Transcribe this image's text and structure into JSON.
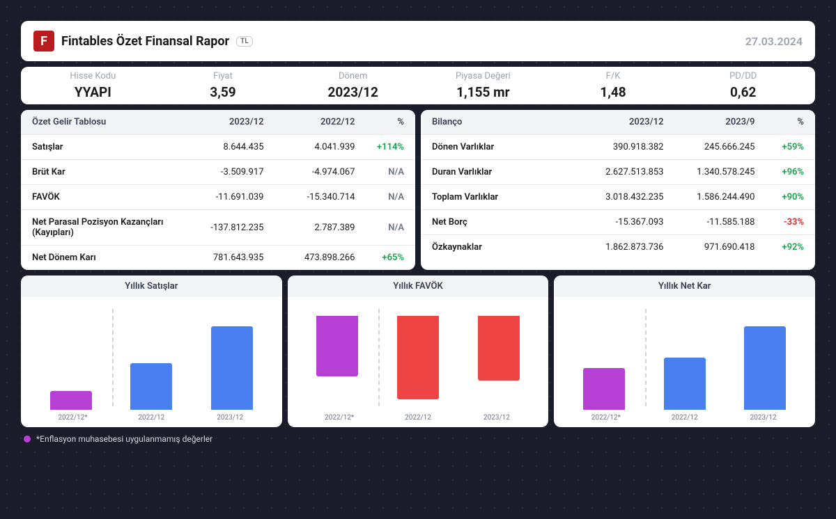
{
  "header": {
    "logo_letter": "F",
    "logo_bg": "#b91c1c",
    "title": "Fintables Özet Finansal Rapor",
    "badge": "TL",
    "date": "27.03.2024"
  },
  "metrics": [
    {
      "label": "Hisse Kodu",
      "value": "YYAPI"
    },
    {
      "label": "Fiyat",
      "value": "3,59"
    },
    {
      "label": "Dönem",
      "value": "2023/12"
    },
    {
      "label": "Piyasa Değeri",
      "value": "1,155 mr"
    },
    {
      "label": "F/K",
      "value": "1,48"
    },
    {
      "label": "PD/DD",
      "value": "0,62"
    }
  ],
  "income_table": {
    "title": "Özet Gelir Tablosu",
    "col1": "2023/12",
    "col2": "2022/12",
    "col3": "%",
    "rows": [
      {
        "label": "Satışlar",
        "v1": "8.644.435",
        "v2": "4.041.939",
        "pct": "+114%",
        "cls": "positive"
      },
      {
        "label": "Brüt Kar",
        "v1": "-3.509.917",
        "v2": "-4.974.067",
        "pct": "N/A",
        "cls": "na"
      },
      {
        "label": "FAVÖK",
        "v1": "-11.691.039",
        "v2": "-15.340.714",
        "pct": "N/A",
        "cls": "na"
      },
      {
        "label": "Net Parasal Pozisyon Kazançları (Kayıpları)",
        "v1": "-137.812.235",
        "v2": "2.787.389",
        "pct": "N/A",
        "cls": "na"
      },
      {
        "label": "Net Dönem Karı",
        "v1": "781.643.935",
        "v2": "473.898.266",
        "pct": "+65%",
        "cls": "positive"
      }
    ]
  },
  "balance_table": {
    "title": "Bilanço",
    "col1": "2023/12",
    "col2": "2023/9",
    "col3": "%",
    "rows": [
      {
        "label": "Dönen Varlıklar",
        "v1": "390.918.382",
        "v2": "245.666.245",
        "pct": "+59%",
        "cls": "positive"
      },
      {
        "label": "Duran Varlıklar",
        "v1": "2.627.513.853",
        "v2": "1.340.578.245",
        "pct": "+96%",
        "cls": "positive"
      },
      {
        "label": "Toplam Varlıklar",
        "v1": "3.018.432.235",
        "v2": "1.586.244.490",
        "pct": "+90%",
        "cls": "positive"
      },
      {
        "label": "Net Borç",
        "v1": "-15.367.093",
        "v2": "-11.585.188",
        "pct": "-33%",
        "cls": "negative"
      },
      {
        "label": "Özkaynaklar",
        "v1": "1.862.873.736",
        "v2": "971.690.418",
        "pct": "+92%",
        "cls": "positive"
      }
    ]
  },
  "charts": [
    {
      "title": "Yıllık Satışlar",
      "labels": [
        "2022/12*",
        "2022/12",
        "2023/12"
      ],
      "baseline_pct": 80,
      "bars": [
        {
          "height_pct": 18,
          "direction": "up",
          "color": "#b83fd6"
        },
        {
          "height_pct": 45,
          "direction": "up",
          "color": "#4a7ff0"
        },
        {
          "height_pct": 80,
          "direction": "up",
          "color": "#4a7ff0"
        }
      ]
    },
    {
      "title": "Yıllık FAVÖK",
      "labels": [
        "2022/12*",
        "2022/12",
        "2023/12"
      ],
      "baseline_pct": 10,
      "bars": [
        {
          "height_pct": 58,
          "direction": "up",
          "color": "#b83fd6",
          "from_top": true
        },
        {
          "height_pct": 80,
          "direction": "down",
          "color": "#ef4444"
        },
        {
          "height_pct": 62,
          "direction": "down",
          "color": "#ef4444"
        }
      ]
    },
    {
      "title": "Yıllık Net Kar",
      "labels": [
        "2022/12*",
        "2022/12",
        "2023/12"
      ],
      "baseline_pct": 80,
      "bars": [
        {
          "height_pct": 40,
          "direction": "up",
          "color": "#b83fd6"
        },
        {
          "height_pct": 50,
          "direction": "up",
          "color": "#4a7ff0"
        },
        {
          "height_pct": 80,
          "direction": "up",
          "color": "#4a7ff0"
        }
      ]
    }
  ],
  "footnote": {
    "dot_color": "#b83fd6",
    "text": "*Enflasyon muhasebesi uygulanmamış değerler"
  },
  "colors": {
    "positive": "#16a34a",
    "negative": "#dc2626"
  }
}
